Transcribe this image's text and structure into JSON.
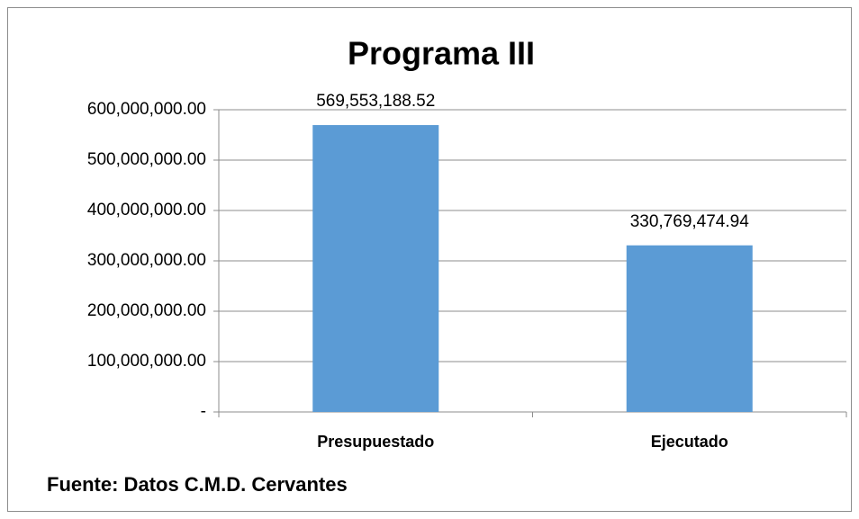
{
  "chart_data": {
    "type": "bar",
    "title": "Programa III",
    "categories": [
      "Presupuestado",
      "Ejecutado"
    ],
    "values": [
      569553188.52,
      330769474.94
    ],
    "value_labels": [
      "569,553,188.52",
      "330,769,474.94"
    ],
    "color": "#5b9bd5",
    "ylim": [
      0,
      600000000
    ],
    "yticks": [
      {
        "value": 0,
        "label": "-"
      },
      {
        "value": 100000000,
        "label": "100,000,000.00"
      },
      {
        "value": 200000000,
        "label": "200,000,000.00"
      },
      {
        "value": 300000000,
        "label": "300,000,000.00"
      },
      {
        "value": 400000000,
        "label": "400,000,000.00"
      },
      {
        "value": 500000000,
        "label": "500,000,000.00"
      },
      {
        "value": 600000000,
        "label": "600,000,000.00"
      }
    ],
    "grid": true,
    "annotation": "Fuente: Datos C.M.D. Cervantes"
  }
}
